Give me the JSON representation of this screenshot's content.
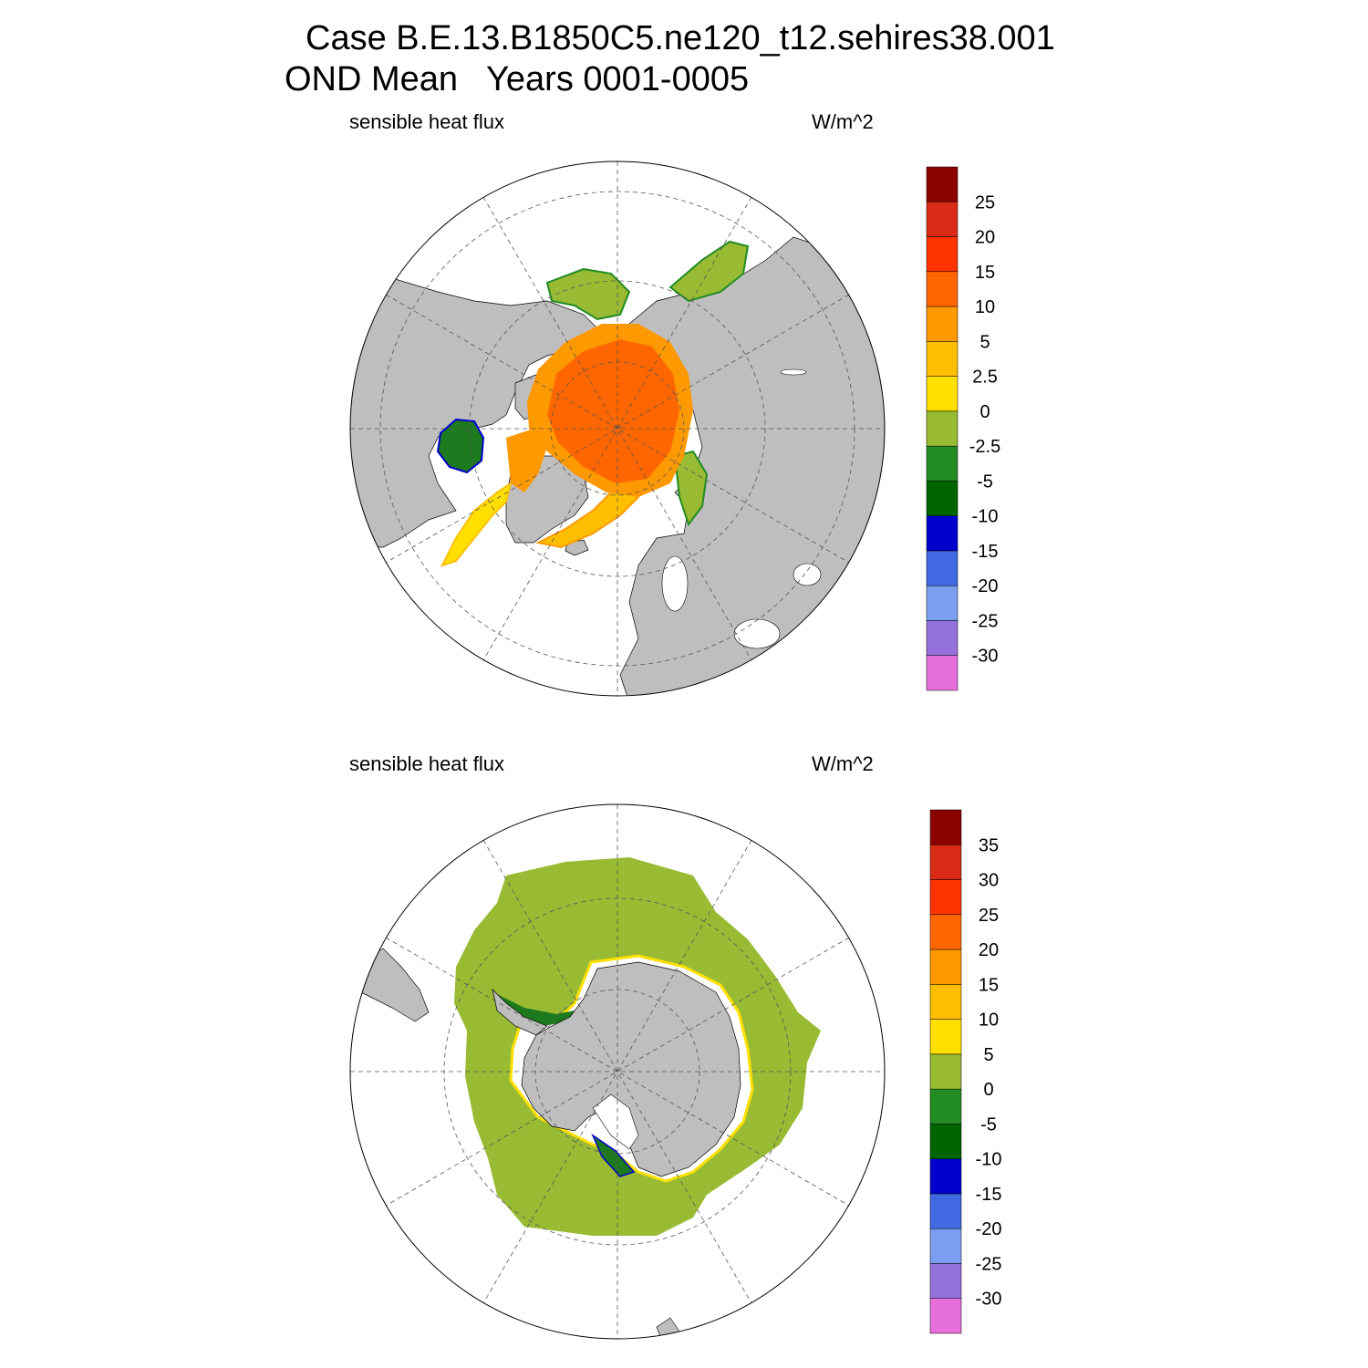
{
  "title_line1": "Case B.E.13.B1850C5.ne120_t12.sehires38.001",
  "title_line2": "OND Mean   Years 0001-0005",
  "panels": [
    {
      "variable_label": "sensible heat flux",
      "units_label": "W/m^2",
      "colorbar": {
        "colors": [
          "#e76fdb",
          "#9370db",
          "#7b9ef0",
          "#4169e1",
          "#0000cd",
          "#006400",
          "#228b22",
          "#98bb33",
          "#ffe000",
          "#ffbf00",
          "#ff9900",
          "#ff6600",
          "#ff3300",
          "#d92b15",
          "#8b0000"
        ],
        "labels": [
          "-30",
          "-25",
          "-20",
          "-15",
          "-10",
          "-5",
          "-2.5",
          "0",
          "2.5",
          "5",
          "10",
          "15",
          "20",
          "25"
        ]
      }
    },
    {
      "variable_label": "sensible heat flux",
      "units_label": "W/m^2",
      "colorbar": {
        "colors": [
          "#e76fdb",
          "#9370db",
          "#7b9ef0",
          "#4169e1",
          "#0000cd",
          "#006400",
          "#228b22",
          "#98bb33",
          "#ffe000",
          "#ffbf00",
          "#ff9900",
          "#ff6600",
          "#ff3300",
          "#d92b15",
          "#8b0000"
        ],
        "labels": [
          "-30",
          "-25",
          "-20",
          "-15",
          "-10",
          "-5",
          "0",
          "5",
          "10",
          "15",
          "20",
          "25",
          "30",
          "35"
        ]
      }
    }
  ],
  "map_colors": {
    "land": "#bebebe",
    "missing": "#ffffff",
    "grid": "#555555"
  }
}
